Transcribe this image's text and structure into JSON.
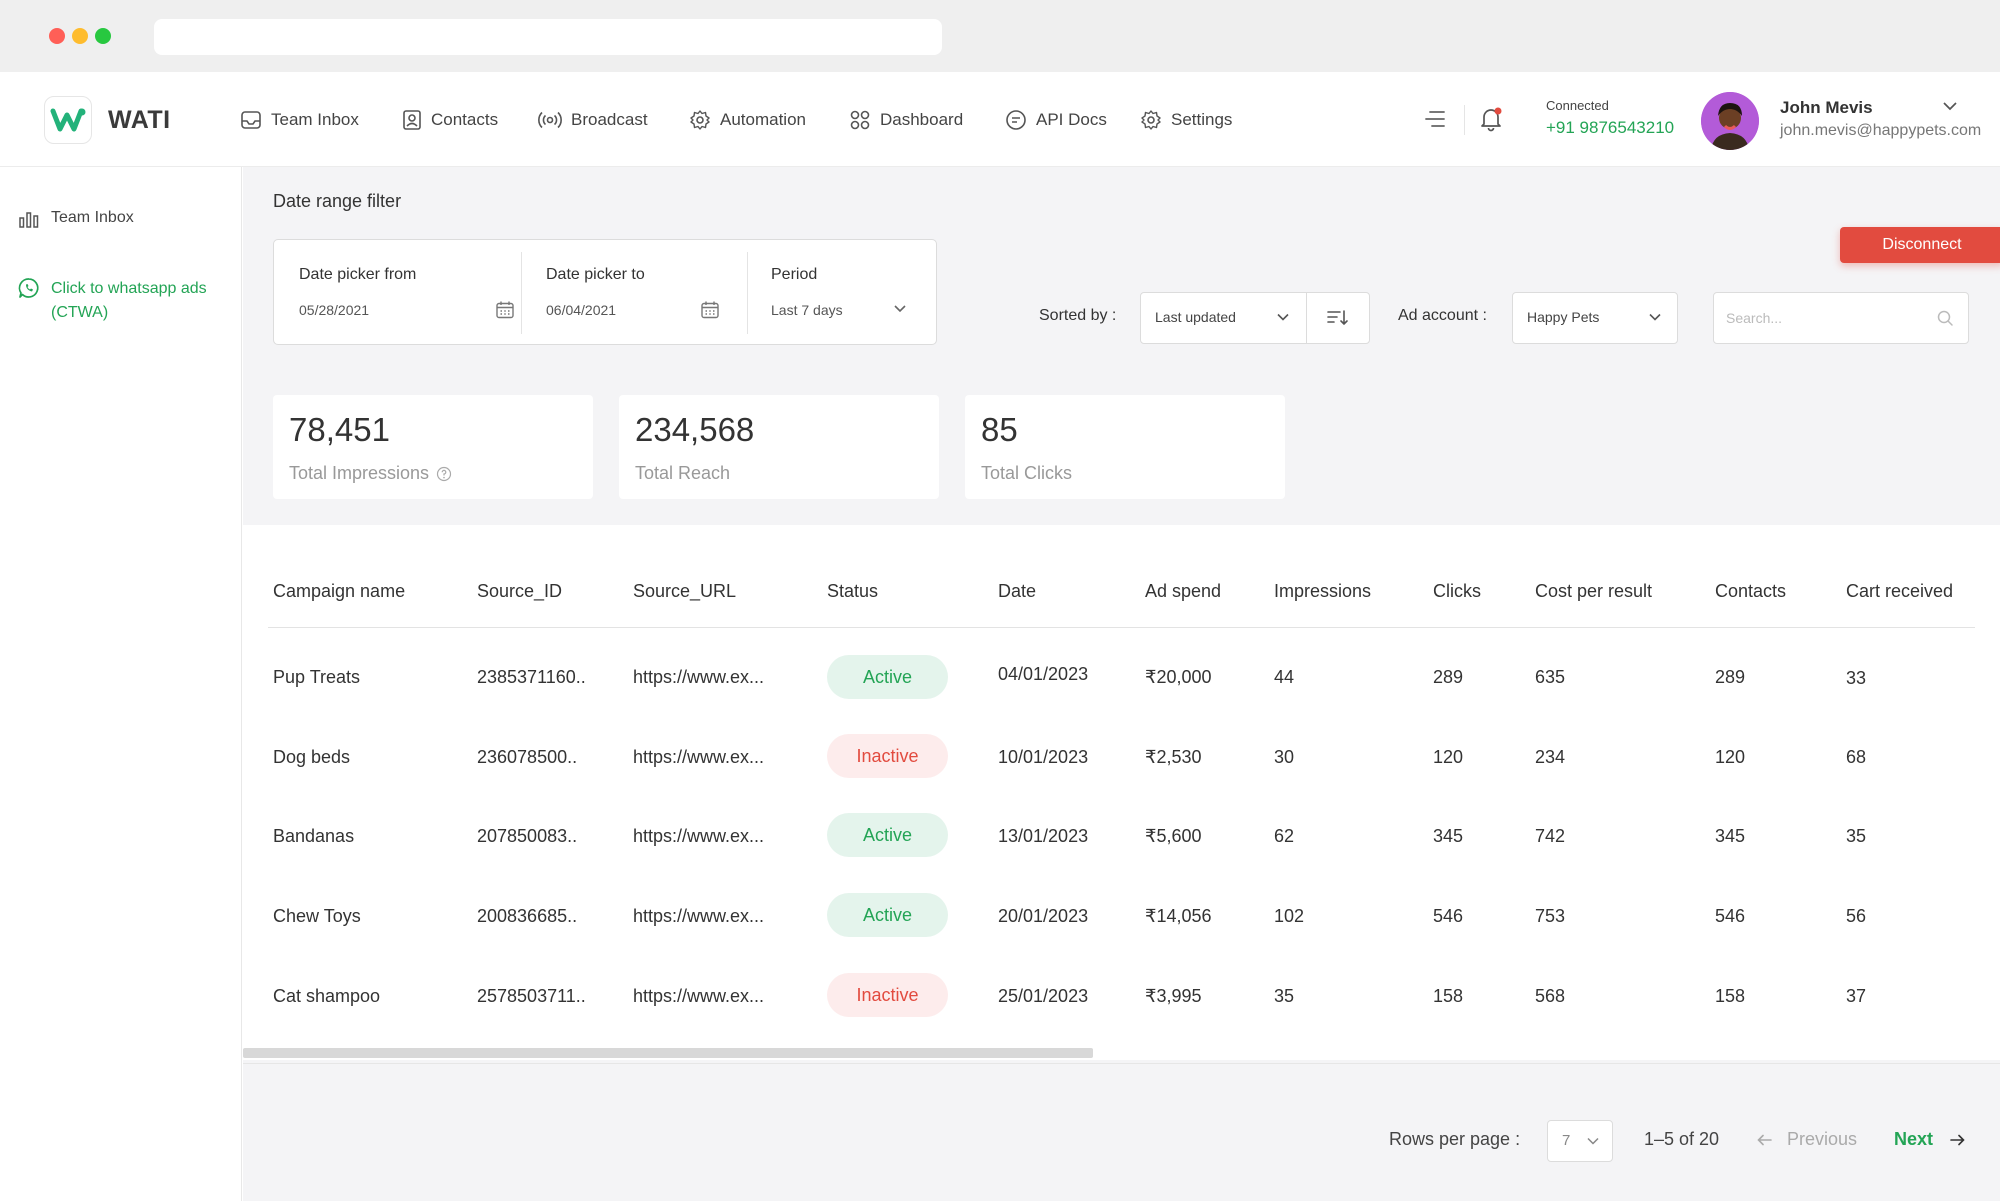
{
  "brand": {
    "name": "WATI",
    "accent": "#23a455",
    "danger": "#e24b3f"
  },
  "nav": {
    "items": [
      {
        "label": "Team Inbox",
        "icon": "inbox-icon"
      },
      {
        "label": "Contacts",
        "icon": "contacts-icon"
      },
      {
        "label": "Broadcast",
        "icon": "broadcast-icon"
      },
      {
        "label": "Automation",
        "icon": "automation-icon"
      },
      {
        "label": "Dashboard",
        "icon": "dashboard-icon"
      },
      {
        "label": "API Docs",
        "icon": "api-docs-icon"
      },
      {
        "label": "Settings",
        "icon": "settings-icon"
      }
    ]
  },
  "header": {
    "connection_label": "Connected",
    "phone": "+91 9876543210",
    "user_name": "John Mevis",
    "user_email": "john.mevis@happypets.com"
  },
  "sidebar": {
    "items": [
      {
        "label": "Team Inbox",
        "icon": "bar-chart-icon"
      },
      {
        "label": "Click to whatsapp ads (CTWA)",
        "icon": "whatsapp-icon"
      }
    ]
  },
  "filter": {
    "title": "Date range filter",
    "from_label": "Date picker from",
    "from_value": "05/28/2021",
    "to_label": "Date picker to",
    "to_value": "06/04/2021",
    "period_label": "Period",
    "period_value": "Last 7 days"
  },
  "controls": {
    "disconnect_label": "Disconnect",
    "sorted_label": "Sorted by :",
    "sorted_value": "Last updated",
    "ad_account_label": "Ad account :",
    "ad_account_value": "Happy Pets",
    "search_placeholder": "Search..."
  },
  "stats": [
    {
      "value": "78,451",
      "label": "Total Impressions"
    },
    {
      "value": "234,568",
      "label": "Total Reach"
    },
    {
      "value": "85",
      "label": "Total Clicks"
    }
  ],
  "table": {
    "columns": [
      "Campaign name",
      "Source_ID",
      "Source_URL",
      "Status",
      "Date",
      "Ad spend",
      "Impressions",
      "Clicks",
      "Cost per result",
      "Contacts",
      "Cart received"
    ],
    "rows": [
      {
        "name": "Pup Treats",
        "source_id": "2385371160..",
        "source_url": "https://www.ex...",
        "status": "Active",
        "date": "04/01/2023",
        "spend": "₹20,000",
        "impressions": "44",
        "clicks": "289",
        "cpr": "635",
        "contacts": "289",
        "cart": "33"
      },
      {
        "name": "Dog beds",
        "source_id": "236078500..",
        "source_url": "https://www.ex...",
        "status": "Inactive",
        "date": "10/01/2023",
        "spend": "₹2,530",
        "impressions": "30",
        "clicks": "120",
        "cpr": "234",
        "contacts": "120",
        "cart": "68"
      },
      {
        "name": "Bandanas",
        "source_id": "207850083..",
        "source_url": "https://www.ex...",
        "status": "Active",
        "date": "13/01/2023",
        "spend": "₹5,600",
        "impressions": "62",
        "clicks": "345",
        "cpr": "742",
        "contacts": "345",
        "cart": "35"
      },
      {
        "name": "Chew Toys",
        "source_id": "200836685..",
        "source_url": "https://www.ex...",
        "status": "Active",
        "date": "20/01/2023",
        "spend": "₹14,056",
        "impressions": "102",
        "clicks": "546",
        "cpr": "753",
        "contacts": "546",
        "cart": "56"
      },
      {
        "name": "Cat shampoo",
        "source_id": "2578503711..",
        "source_url": "https://www.ex...",
        "status": "Inactive",
        "date": "25/01/2023",
        "spend": "₹3,995",
        "impressions": "35",
        "clicks": "158",
        "cpr": "568",
        "contacts": "158",
        "cart": "37"
      }
    ]
  },
  "pagination": {
    "rows_per_page_label": "Rows per page :",
    "rows_per_page_value": "7",
    "range": "1–5 of 20",
    "previous_label": "Previous",
    "next_label": "Next"
  }
}
